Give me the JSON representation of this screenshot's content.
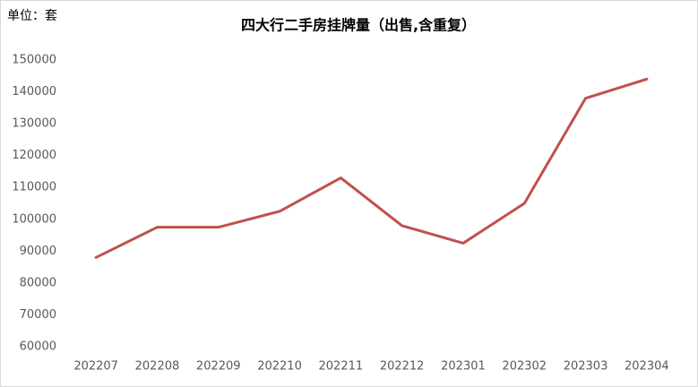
{
  "chart_data": {
    "type": "line",
    "title": "四大行二手房挂牌量（出售,含重复）",
    "unit_label": "单位：套",
    "categories": [
      "202207",
      "202208",
      "202209",
      "202210",
      "202211",
      "202212",
      "202301",
      "202302",
      "202303",
      "202304"
    ],
    "values": [
      88000,
      97500,
      97500,
      102500,
      113000,
      98000,
      92500,
      105000,
      138000,
      144000
    ],
    "color": "#c0504d",
    "ylim": [
      60000,
      150000
    ],
    "yticks": [
      60000,
      70000,
      80000,
      90000,
      100000,
      110000,
      120000,
      130000,
      140000,
      150000
    ],
    "grid": false
  }
}
